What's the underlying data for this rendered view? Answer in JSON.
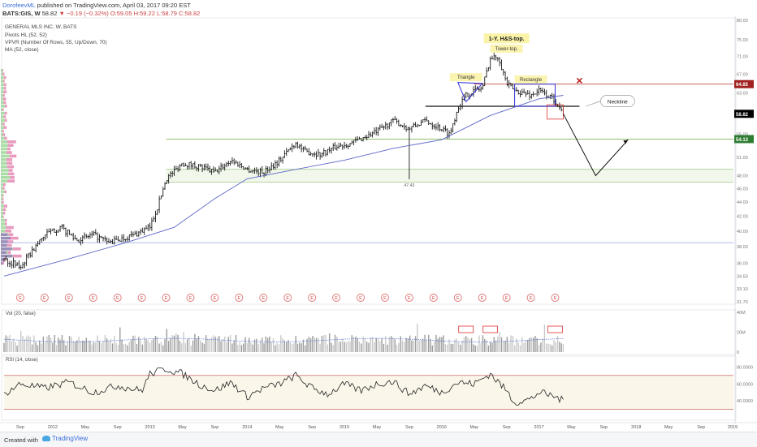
{
  "header": {
    "author": "DorofeevML",
    "published": " published on TradingView.com, April 03, 2017 09:20 EST",
    "symbol": "BATS:GIS, W",
    "last": "58.82",
    "change": "−0.19 (−0.32%)",
    "ohlc": "O:59.05 H:59.22 L:58.79 C:58.82"
  },
  "legend": {
    "instrument": "GENERAL MLS INC, W, BATS",
    "pivots": "Pivots HL (52, 52)",
    "vpvr": "VPVR (Number Of Rows, 55, Up/Down, 70)",
    "ma": "MA (52, close)"
  },
  "footer": {
    "created": "Created with",
    "brand": "TradingView"
  },
  "colors": {
    "bar": "#1a1a1a",
    "ma": "#5b66c9",
    "green_line": "#7fb25a",
    "red_line": "#c44a4a",
    "pattern": "#2f2fd8",
    "vpvr_up": "#8fd18a",
    "vpvr_down": "#e07aa8",
    "vpvr_base": "#8a4fc9"
  },
  "chart_data": [
    {
      "type": "ohlc",
      "title": "GENERAL MLS INC, W, BATS",
      "last_value": 58.82,
      "x_axis": {
        "range": [
          "2011-07",
          "2019-01"
        ],
        "tick_labels": [
          "Sep",
          "2012",
          "May",
          "Sep",
          "2013",
          "May",
          "Sep",
          "2014",
          "May",
          "Sep",
          "2015",
          "May",
          "Sep",
          "2016",
          "May",
          "Sep",
          "2017",
          "May",
          "Sep",
          "2018",
          "May",
          "Sep",
          "2019"
        ]
      },
      "y_axis": {
        "range": [
          31.7,
          80.0
        ],
        "scale": "log",
        "tick_labels": [
          "80.00",
          "75.00",
          "71.00",
          "67.00",
          "63.00",
          "59.00",
          "55.00",
          "51.00",
          "48.00",
          "46.00",
          "44.00",
          "42.00",
          "40.00",
          "38.00",
          "36.00",
          "34.50",
          "33.10",
          "31.70"
        ],
        "highlighted": [
          {
            "label": "64.85",
            "color": "#a02020"
          },
          {
            "label": "58.82",
            "color": "#000000"
          },
          {
            "label": "54.13",
            "color": "#2e7d32"
          }
        ]
      },
      "price_path": [
        [
          "2011-07",
          36.5
        ],
        [
          "2011-09",
          35.5
        ],
        [
          "2011-12",
          39.5
        ],
        [
          "2012-02",
          40.5
        ],
        [
          "2012-04",
          38.8
        ],
        [
          "2012-06",
          39.5
        ],
        [
          "2012-08",
          38.5
        ],
        [
          "2012-11",
          39.5
        ],
        [
          "2013-01",
          40.5
        ],
        [
          "2013-02",
          43.5
        ],
        [
          "2013-03",
          47.5
        ],
        [
          "2013-05",
          50.0
        ],
        [
          "2013-07",
          49.5
        ],
        [
          "2013-09",
          48.5
        ],
        [
          "2013-11",
          50.5
        ],
        [
          "2014-01",
          49.0
        ],
        [
          "2014-03",
          48.5
        ],
        [
          "2014-05",
          50.5
        ],
        [
          "2014-07",
          53.5
        ],
        [
          "2014-08",
          52.0
        ],
        [
          "2014-10",
          51.5
        ],
        [
          "2014-12",
          52.8
        ],
        [
          "2015-02",
          53.5
        ],
        [
          "2015-05",
          55.5
        ],
        [
          "2015-07",
          57.5
        ],
        [
          "2015-09",
          56.0
        ],
        [
          "2015-11",
          57.5
        ],
        [
          "2016-01",
          56.0
        ],
        [
          "2016-02",
          55.0
        ],
        [
          "2016-03",
          60.0
        ],
        [
          "2016-04",
          62.5
        ],
        [
          "2016-05",
          63.5
        ],
        [
          "2016-06",
          64.0
        ],
        [
          "2016-07",
          70.5
        ],
        [
          "2016-08",
          71.0
        ],
        [
          "2016-09",
          65.0
        ],
        [
          "2016-10",
          63.5
        ],
        [
          "2016-12",
          62.5
        ],
        [
          "2017-01",
          63.5
        ],
        [
          "2017-03",
          61.5
        ],
        [
          "2017-04",
          58.82
        ]
      ],
      "ma_path": [
        [
          "2011-07",
          34.5
        ],
        [
          "2012-03",
          36.5
        ],
        [
          "2012-10",
          38.5
        ],
        [
          "2013-04",
          40.5
        ],
        [
          "2013-09",
          44.5
        ],
        [
          "2014-01",
          47.5
        ],
        [
          "2014-07",
          49.0
        ],
        [
          "2015-01",
          50.5
        ],
        [
          "2015-07",
          52.5
        ],
        [
          "2016-01",
          54.0
        ],
        [
          "2016-07",
          58.5
        ],
        [
          "2017-01",
          61.8
        ],
        [
          "2017-04",
          62.5
        ]
      ],
      "horizontal_lines": [
        {
          "y": 64.85,
          "from": "2016-05",
          "to": "2019-01",
          "color": "red"
        },
        {
          "y": 60.3,
          "from": "2015-11",
          "to": "2017-06",
          "color": "black",
          "label": "Neckline"
        },
        {
          "y": 54.13,
          "from": "2013-03",
          "to": "2019-01",
          "color": "green"
        },
        {
          "y": 49.0,
          "from": "2013-03",
          "to": "2019-01",
          "color": "green"
        },
        {
          "y": 47.0,
          "from": "2013-03",
          "to": "2019-01",
          "color": "green"
        },
        {
          "y": 38.5,
          "from": "2011-07",
          "to": "2019-01",
          "color": "blue"
        }
      ],
      "annotations": [
        {
          "text": "1-Y. H&S-top.",
          "x": "2016-09",
          "y": 75.0
        },
        {
          "text": "Tower-top.",
          "x": "2016-09",
          "y": 72.5
        },
        {
          "text": "Triangle",
          "x": "2016-04",
          "y": 66.0
        },
        {
          "text": "Rectangle",
          "x": "2016-12",
          "y": 65.5
        },
        {
          "text": "Neckline",
          "x": "2017-09",
          "y": 61.0
        },
        {
          "text": "47.43",
          "x": "2015-09",
          "y": 46.7
        }
      ],
      "projection": [
        [
          "2017-04",
          58.82
        ],
        [
          "2017-08",
          48.0
        ],
        [
          "2017-12",
          54.0
        ]
      ],
      "earnings_markers": [
        "2011-09",
        "2011-12",
        "2012-03",
        "2012-06",
        "2012-09",
        "2012-12",
        "2013-03",
        "2013-06",
        "2013-09",
        "2013-12",
        "2014-03",
        "2014-06",
        "2014-09",
        "2014-12",
        "2015-03",
        "2015-06",
        "2015-09",
        "2015-12",
        "2016-03",
        "2016-06",
        "2016-09",
        "2016-12",
        "2017-03"
      ]
    },
    {
      "type": "bar",
      "title": "Vol (20, false)",
      "y_axis": {
        "range": [
          0,
          40
        ],
        "tick_labels": [
          "40M",
          "20M",
          "0"
        ]
      },
      "typical_volume_M": 12,
      "highlighted_periods": [
        "2016-04",
        "2016-07",
        "2017-03"
      ]
    },
    {
      "type": "line",
      "title": "RSI (14, close)",
      "y_axis": {
        "range": [
          20,
          90
        ],
        "tick_labels": [
          "80.0000",
          "60.0000",
          "40.0000"
        ]
      },
      "bands": [
        30,
        70
      ],
      "path": [
        [
          "2011-07",
          48
        ],
        [
          "2011-09",
          60
        ],
        [
          "2011-12",
          55
        ],
        [
          "2012-03",
          62
        ],
        [
          "2012-06",
          50
        ],
        [
          "2012-09",
          58
        ],
        [
          "2012-12",
          52
        ],
        [
          "2013-01",
          72
        ],
        [
          "2013-03",
          78
        ],
        [
          "2013-05",
          72
        ],
        [
          "2013-07",
          60
        ],
        [
          "2013-09",
          52
        ],
        [
          "2013-11",
          62
        ],
        [
          "2014-01",
          45
        ],
        [
          "2014-03",
          55
        ],
        [
          "2014-05",
          60
        ],
        [
          "2014-07",
          70
        ],
        [
          "2014-09",
          55
        ],
        [
          "2014-11",
          48
        ],
        [
          "2015-01",
          60
        ],
        [
          "2015-03",
          52
        ],
        [
          "2015-05",
          60
        ],
        [
          "2015-07",
          63
        ],
        [
          "2015-09",
          48
        ],
        [
          "2015-11",
          58
        ],
        [
          "2016-01",
          50
        ],
        [
          "2016-03",
          62
        ],
        [
          "2016-05",
          60
        ],
        [
          "2016-07",
          72
        ],
        [
          "2016-09",
          52
        ],
        [
          "2016-10",
          38
        ],
        [
          "2016-12",
          42
        ],
        [
          "2017-01",
          50
        ],
        [
          "2017-03",
          45
        ],
        [
          "2017-04",
          40
        ]
      ]
    }
  ]
}
